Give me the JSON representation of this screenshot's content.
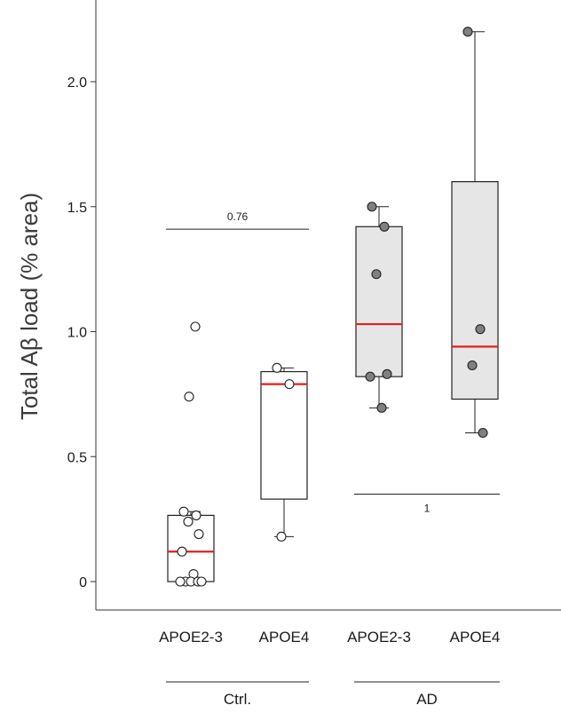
{
  "chart_data": {
    "type": "box",
    "ylabel": "Total Aβ load (% area)",
    "ylim": [
      -0.12,
      2.3
    ],
    "yticks": [
      "0",
      "0.5",
      "1.0",
      "1.5",
      "2.0"
    ],
    "ytick_values": [
      0,
      0.5,
      1.0,
      1.5,
      2.0
    ],
    "categories": [
      "APOE2-3",
      "APOE4",
      "APOE2-3",
      "APOE4"
    ],
    "groups": [
      {
        "label": "Ctrl.",
        "categories": [
          0,
          1
        ]
      },
      {
        "label": "AD",
        "categories": [
          2,
          3
        ]
      }
    ],
    "boxes": [
      {
        "q1": 0.0,
        "median": 0.12,
        "q3": 0.265,
        "whisker_low": 0.0,
        "whisker_high": 0.28,
        "fill": "#ffffff",
        "point_color": "#ffffff",
        "points": [
          0.28,
          0.265,
          0.24,
          0.19,
          0.12,
          0.03,
          0.0,
          0.0,
          0.0,
          0.0,
          0.0,
          0.74,
          1.02
        ]
      },
      {
        "q1": 0.33,
        "median": 0.79,
        "q3": 0.84,
        "whisker_low": 0.18,
        "whisker_high": 0.855,
        "fill": "#ffffff",
        "point_color": "#ffffff",
        "points": [
          0.855,
          0.79,
          0.18
        ]
      },
      {
        "q1": 0.82,
        "median": 1.03,
        "q3": 1.42,
        "whisker_low": 0.695,
        "whisker_high": 1.5,
        "fill": "#e6e6e6",
        "point_color": "#808080",
        "points": [
          1.5,
          1.42,
          1.23,
          0.83,
          0.82,
          0.695
        ]
      },
      {
        "q1": 0.73,
        "median": 0.94,
        "q3": 1.6,
        "whisker_low": 0.595,
        "whisker_high": 2.2,
        "fill": "#e6e6e6",
        "point_color": "#808080",
        "points": [
          2.2,
          1.01,
          0.865,
          0.595
        ]
      }
    ],
    "annotations": [
      {
        "text": "0.76",
        "y": 1.41,
        "between": [
          0,
          1
        ],
        "label_position": "above"
      },
      {
        "text": "1",
        "y": 0.35,
        "between": [
          2,
          3
        ],
        "label_position": "below"
      }
    ],
    "median_color": "#e02020",
    "grid": false
  }
}
